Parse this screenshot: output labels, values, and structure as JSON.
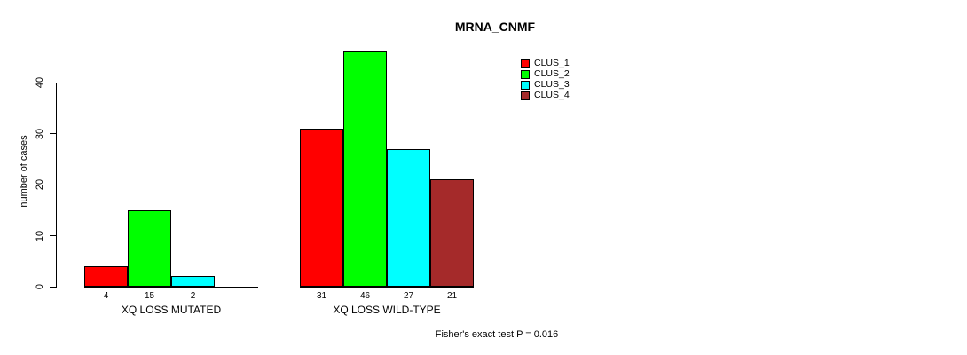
{
  "title": "MRNA_CNMF",
  "annotation": "Fisher's exact test P = 0.016",
  "chart_data": {
    "type": "bar",
    "title": "MRNA_CNMF",
    "xlabel": "",
    "ylabel": "number of cases",
    "ylim": [
      0,
      46
    ],
    "yticks": [
      0,
      10,
      20,
      30,
      40
    ],
    "grid": false,
    "legend_position": "top-right",
    "bar_value_labels_shown": true,
    "categories": [
      "XQ LOSS MUTATED",
      "XQ LOSS WILD-TYPE"
    ],
    "series": [
      {
        "name": "CLUS_1",
        "color": "#ff0000",
        "values": [
          4,
          31
        ]
      },
      {
        "name": "CLUS_2",
        "color": "#00ff00",
        "values": [
          15,
          46
        ]
      },
      {
        "name": "CLUS_3",
        "color": "#00ffff",
        "values": [
          2,
          27
        ]
      },
      {
        "name": "CLUS_4",
        "color": "#a52a2a",
        "values": [
          0,
          21
        ]
      }
    ],
    "axis_color": "#000000",
    "background_color": "#ffffff"
  }
}
